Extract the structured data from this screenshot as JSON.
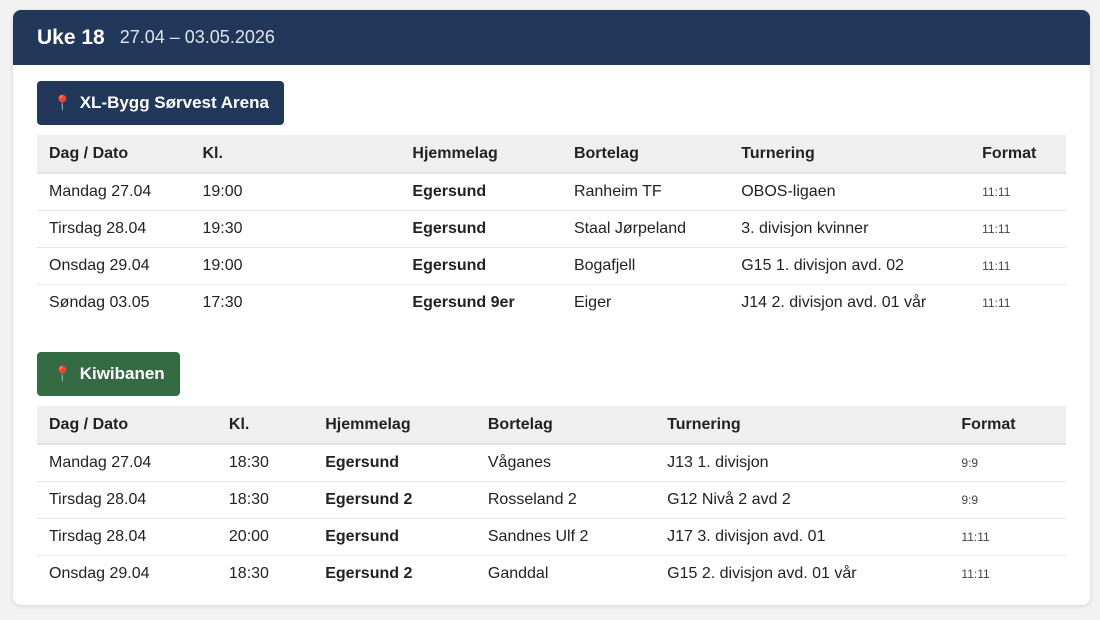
{
  "header": {
    "week": "Uke 18",
    "dates": "27.04 – 03.05.2026"
  },
  "columns": [
    "Dag / Dato",
    "Kl.",
    "Hjemmelag",
    "Bortelag",
    "Turnering",
    "Format"
  ],
  "venues": [
    {
      "name": "XL-Bygg Sørvest Arena",
      "icon": "pushpin-icon",
      "color": "#22385a",
      "rows": [
        [
          "Mandag 27.04",
          "19:00",
          "Egersund",
          "Ranheim TF",
          "OBOS-ligaen",
          "11:11"
        ],
        [
          "Tirsdag 28.04",
          "19:30",
          "Egersund",
          "Staal Jørpeland",
          "3. divisjon kvinner",
          "11:11"
        ],
        [
          "Onsdag 29.04",
          "19:00",
          "Egersund",
          "Bogafjell",
          "G15 1. divisjon avd. 02",
          "11:11"
        ],
        [
          "Søndag 03.05",
          "17:30",
          "Egersund 9er",
          "Eiger",
          "J14 2. divisjon avd. 01 vår",
          "11:11"
        ]
      ]
    },
    {
      "name": "Kiwibanen",
      "icon": "pushpin-icon",
      "color": "#356b43",
      "rows": [
        [
          "Mandag 27.04",
          "18:30",
          "Egersund",
          "Våganes",
          "J13 1. divisjon",
          "9:9"
        ],
        [
          "Tirsdag 28.04",
          "18:30",
          "Egersund 2",
          "Rosseland 2",
          "G12 Nivå 2 avd 2",
          "9:9"
        ],
        [
          "Tirsdag 28.04",
          "20:00",
          "Egersund",
          "Sandnes Ulf 2",
          "J17 3. divisjon avd. 01",
          "11:11"
        ],
        [
          "Onsdag 29.04",
          "18:30",
          "Egersund 2",
          "Ganddal",
          "G15 2. divisjon avd. 01 vår",
          "11:11"
        ]
      ]
    }
  ]
}
